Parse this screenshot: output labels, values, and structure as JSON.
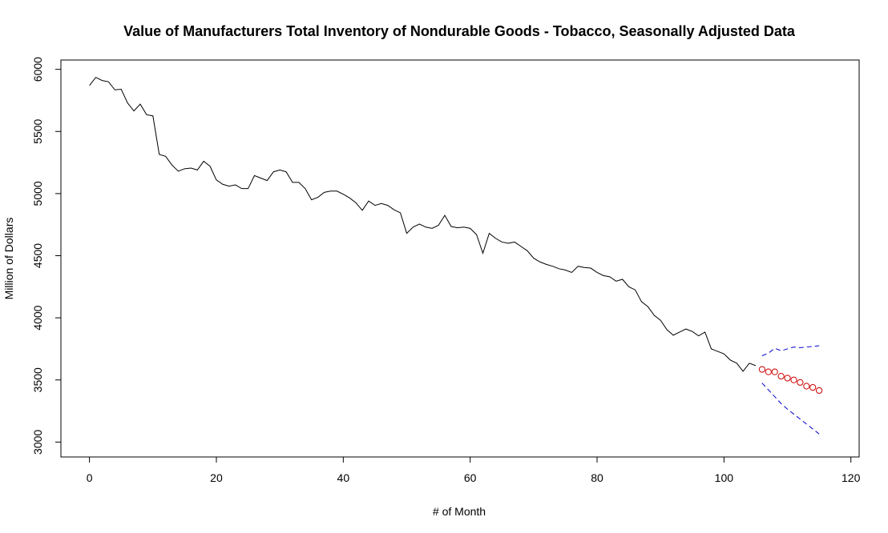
{
  "chart_data": {
    "type": "line",
    "title": "Value of Manufacturers Total Inventory of Nondurable Goods - Tobacco, Seasonally Adjusted Data",
    "xlabel": "# of Month",
    "ylabel": "Million of Dollars",
    "xlim": [
      -4.5,
      121.3
    ],
    "ylim": [
      2880,
      6075
    ],
    "xticks": [
      0,
      20,
      40,
      60,
      80,
      100,
      120
    ],
    "yticks": [
      3000,
      3500,
      4000,
      4500,
      5000,
      5500,
      6000
    ],
    "grid": false,
    "series": [
      {
        "role": "observed",
        "style": "solid",
        "color": "#000000",
        "x": [
          0,
          1,
          2,
          3,
          4,
          5,
          6,
          7,
          8,
          9,
          10,
          11,
          12,
          13,
          14,
          15,
          16,
          17,
          18,
          19,
          20,
          21,
          22,
          23,
          24,
          25,
          26,
          27,
          28,
          29,
          30,
          31,
          32,
          33,
          34,
          35,
          36,
          37,
          38,
          39,
          40,
          41,
          42,
          43,
          44,
          45,
          46,
          47,
          48,
          49,
          50,
          51,
          52,
          53,
          54,
          55,
          56,
          57,
          58,
          59,
          60,
          61,
          62,
          63,
          64,
          65,
          66,
          67,
          68,
          69,
          70,
          71,
          72,
          73,
          74,
          75,
          76,
          77,
          78,
          79,
          80,
          81,
          82,
          83,
          84,
          85,
          86,
          87,
          88,
          89,
          90,
          91,
          92,
          93,
          94,
          95,
          96,
          97,
          98,
          99,
          100,
          101,
          102,
          103,
          104,
          105
        ],
        "y": [
          5870,
          5935,
          5910,
          5900,
          5835,
          5840,
          5730,
          5665,
          5720,
          5635,
          5625,
          5315,
          5300,
          5230,
          5180,
          5200,
          5205,
          5190,
          5260,
          5220,
          5110,
          5075,
          5060,
          5070,
          5040,
          5040,
          5145,
          5125,
          5105,
          5175,
          5190,
          5175,
          5090,
          5090,
          5040,
          4950,
          4970,
          5010,
          5020,
          5020,
          4995,
          4965,
          4925,
          4865,
          4940,
          4905,
          4920,
          4905,
          4870,
          4845,
          4680,
          4730,
          4755,
          4730,
          4720,
          4745,
          4825,
          4735,
          4725,
          4730,
          4720,
          4670,
          4520,
          4680,
          4640,
          4610,
          4600,
          4610,
          4575,
          4540,
          4480,
          4450,
          4430,
          4415,
          4395,
          4385,
          4365,
          4415,
          4405,
          4400,
          4365,
          4340,
          4330,
          4295,
          4310,
          4250,
          4225,
          4130,
          4090,
          4020,
          3980,
          3905,
          3860,
          3885,
          3910,
          3890,
          3855,
          3885,
          3750,
          3730,
          3710,
          3660,
          3635,
          3570,
          3635,
          3615
        ]
      },
      {
        "role": "forecast",
        "style": "points",
        "color": "#cc0000",
        "x": [
          106,
          107,
          108,
          109,
          110,
          111,
          112,
          113,
          114,
          115
        ],
        "y": [
          3585,
          3565,
          3565,
          3530,
          3515,
          3500,
          3480,
          3450,
          3440,
          3415
        ]
      },
      {
        "role": "upper-bound",
        "style": "dashed",
        "color": "#0000cc",
        "x": [
          106,
          107,
          108,
          109,
          110,
          111,
          112,
          113,
          114,
          115
        ],
        "y": [
          3695,
          3715,
          3755,
          3735,
          3750,
          3765,
          3760,
          3765,
          3770,
          3775
        ]
      },
      {
        "role": "lower-bound",
        "style": "dashed",
        "color": "#0000cc",
        "x": [
          106,
          107,
          108,
          109,
          110,
          111,
          112,
          113,
          114,
          115
        ],
        "y": [
          3475,
          3420,
          3365,
          3310,
          3265,
          3225,
          3185,
          3145,
          3105,
          3065
        ]
      }
    ]
  }
}
